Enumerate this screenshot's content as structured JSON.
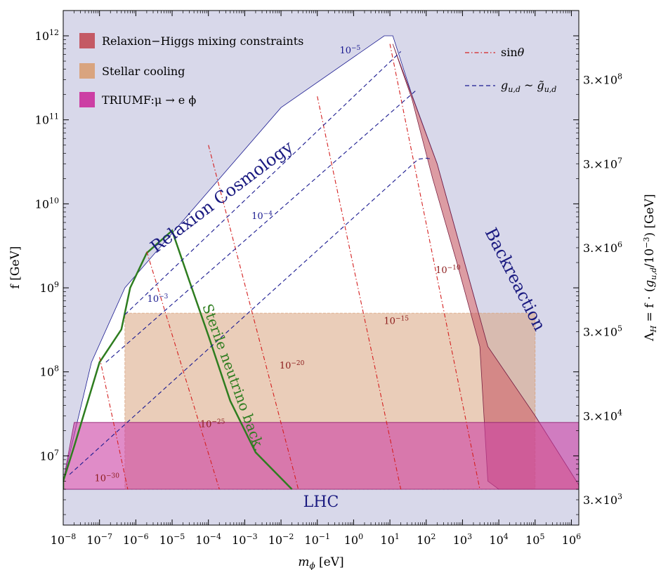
{
  "chart_data": {
    "type": "area",
    "xlabel_main": "m",
    "xlabel_sub": "ϕ",
    "xlabel_unit": "[eV]",
    "ylabel": "f [GeV]",
    "ylabel_right": "Λ_H = f · (g_{u,d}/10^{-3}) [GeV]",
    "ylabel_right_text": "ΛH = f · (gu,d/10−3) [GeV]",
    "x_scale": "log10",
    "y_scale": "log10",
    "xlim": [
      1e-08,
      1600000.0
    ],
    "ylim": [
      1500000.0,
      2000000000000.0
    ],
    "x_ticks": [
      {
        "exp": "-8",
        "label": "10−8"
      },
      {
        "exp": "-7",
        "label": "10−7"
      },
      {
        "exp": "-6",
        "label": "10−6"
      },
      {
        "exp": "-5",
        "label": "10−5"
      },
      {
        "exp": "-4",
        "label": "10−4"
      },
      {
        "exp": "-3",
        "label": "10−3"
      },
      {
        "exp": "-2",
        "label": "10−2"
      },
      {
        "exp": "-1",
        "label": "10−1"
      },
      {
        "exp": "0",
        "label": "100"
      },
      {
        "exp": "1",
        "label": "101"
      },
      {
        "exp": "2",
        "label": "102"
      },
      {
        "exp": "3",
        "label": "103"
      },
      {
        "exp": "4",
        "label": "104"
      },
      {
        "exp": "5",
        "label": "105"
      },
      {
        "exp": "6",
        "label": "106"
      }
    ],
    "y_ticks": [
      {
        "exp": "7",
        "label": "107"
      },
      {
        "exp": "8",
        "label": "108"
      },
      {
        "exp": "9",
        "label": "109"
      },
      {
        "exp": "10",
        "label": "1010"
      },
      {
        "exp": "11",
        "label": "1011"
      },
      {
        "exp": "12",
        "label": "1012"
      }
    ],
    "y_right_ticks": [
      {
        "f": 3000000.0,
        "mant": "3.",
        "exp": "3",
        "label": "3.×103"
      },
      {
        "f": 30000000.0,
        "mant": "3.",
        "exp": "4",
        "label": "3.×104"
      },
      {
        "f": 300000000.0,
        "mant": "3.",
        "exp": "5",
        "label": "3.×105"
      },
      {
        "f": 3000000000.0,
        "mant": "3.",
        "exp": "6",
        "label": "3.×106"
      },
      {
        "f": 30000000000.0,
        "mant": "3.",
        "exp": "7",
        "label": "3.×107"
      },
      {
        "f": 300000000000.0,
        "mant": "3.",
        "exp": "8",
        "label": "3.×108"
      }
    ],
    "colors": {
      "excluded_background": "#d8d8ea",
      "allowed": "#ffffff",
      "relaxion_higgs": "#c45a65",
      "stellar_cooling": "#d9a47f",
      "triumf": "#cc3fa4",
      "sterile_line": "#2e7d1f",
      "sin_theta_line": "#d42020",
      "coupling_line": "#1a1a90"
    },
    "legend": [
      {
        "label": "Relaxion−Higgs mixing constraints",
        "color": "#c45a65"
      },
      {
        "label": "Stellar cooling",
        "color": "#d9a47f"
      },
      {
        "label": "TRIUMF:μ → e ϕ",
        "color": "#cc3fa4"
      }
    ],
    "line_legend": [
      {
        "label": "sinθ",
        "style": "dash-dot",
        "color": "#d42020"
      },
      {
        "label": "g_{u,d} ~ g̃_{u,d}",
        "style": "dashed",
        "color": "#1a1a90"
      }
    ],
    "region_labels": {
      "relaxion_cosmology": "Relaxion Cosmology",
      "backreaction": "Backreaction",
      "sterile": "Sterile neutrino back.",
      "lhc": "LHC"
    },
    "allowed_region": [
      [
        1e-08,
        4000000.0
      ],
      [
        1e-08,
        5000000.0
      ],
      [
        6e-08,
        130000000.0
      ],
      [
        5e-07,
        1000000000.0
      ],
      [
        0.01,
        140000000000.0
      ],
      [
        7,
        1000000000000.0
      ],
      [
        12,
        1000000000000.0
      ],
      [
        40,
        200000000000.0
      ],
      [
        200,
        30000000000.0
      ],
      [
        5000.0,
        200000000.0
      ],
      [
        100000.0,
        30000000.0
      ],
      [
        1600000.0,
        4500000.0
      ],
      [
        1600000.0,
        4000000.0
      ]
    ],
    "relaxion_higgs_region": [
      [
        12,
        800000000000.0
      ],
      [
        200,
        30000000000.0
      ],
      [
        5000.0,
        200000000.0
      ],
      [
        100000.0,
        30000000.0
      ],
      [
        1600000.0,
        4500000.0
      ],
      [
        1600000.0,
        4000000.0
      ],
      [
        10000.0,
        4000000.0
      ],
      [
        5000.0,
        5000000.0
      ],
      [
        3000.0,
        200000000.0
      ],
      [
        700,
        2000000000.0
      ],
      [
        150,
        20000000000.0
      ],
      [
        40,
        180000000000.0
      ]
    ],
    "stellar_cooling_region": [
      [
        5e-07,
        500000000.0
      ],
      [
        100000.0,
        500000000.0
      ],
      [
        100000.0,
        4000000.0
      ],
      [
        5e-07,
        4000000.0
      ]
    ],
    "triumf_region": [
      [
        2e-08,
        25000000.0
      ],
      [
        1600000.0,
        25000000.0
      ],
      [
        1600000.0,
        4000000.0
      ],
      [
        1e-08,
        4000000.0
      ],
      [
        1e-08,
        5000000.0
      ]
    ],
    "sterile_boundary": [
      [
        1e-08,
        4000000.0
      ],
      [
        1e-08,
        5000000.0
      ],
      [
        2e-08,
        13000000.0
      ],
      [
        1e-07,
        130000000.0
      ],
      [
        4e-07,
        320000000.0
      ],
      [
        7e-07,
        1000000000.0
      ],
      [
        2e-06,
        2600000000.0
      ],
      [
        1e-05,
        4800000000.0
      ],
      [
        3e-05,
        1200000000.0
      ],
      [
        0.0001,
        270000000.0
      ],
      [
        0.0004,
        45000000.0
      ],
      [
        0.002,
        11000000.0
      ],
      [
        0.02,
        4000000.0
      ]
    ],
    "sin_theta_lines": [
      {
        "label": "10−30",
        "base": "10",
        "exp": "−30",
        "label_at": [
          1.6e-07,
          5000000.0
        ],
        "points": [
          [
            1e-07,
            150000000.0
          ],
          [
            6e-07,
            4000000.0
          ]
        ]
      },
      {
        "label": "10−25",
        "base": "10",
        "exp": "−25",
        "label_at": [
          0.00013,
          22000000.0
        ],
        "points": [
          [
            2e-06,
            2700000000.0
          ],
          [
            0.0002,
            4000000.0
          ]
        ]
      },
      {
        "label": "10−20",
        "base": "10",
        "exp": "−20",
        "label_at": [
          0.02,
          110000000.0
        ],
        "points": [
          [
            0.0001,
            50000000000.0
          ],
          [
            0.03,
            4000000.0
          ]
        ]
      },
      {
        "label": "10−15",
        "base": "10",
        "exp": "−15",
        "label_at": [
          15,
          370000000.0
        ],
        "points": [
          [
            0.1,
            190000000000.0
          ],
          [
            20,
            4000000.0
          ]
        ]
      },
      {
        "label": "10−10",
        "base": "10",
        "exp": "−10",
        "label_at": [
          400.0,
          1500000000.0
        ],
        "points": [
          [
            10,
            800000000000.0
          ],
          [
            3000.0,
            4000000.0
          ]
        ]
      }
    ],
    "coupling_lines": [
      {
        "label": "10−5",
        "base": "10",
        "exp": "−5",
        "label_at": [
          0.8,
          620000000000.0
        ],
        "points": [
          [
            5e-07,
            480000000.0
          ],
          [
            20,
            650000000000.0
          ]
        ]
      },
      {
        "label": "10−4",
        "base": "10",
        "exp": "−4",
        "label_at": [
          0.003,
          6600000000.0
        ],
        "points": [
          [
            1.5e-07,
            130000000.0
          ],
          [
            50,
            220000000000.0
          ]
        ]
      },
      {
        "label": "10−3",
        "base": "10",
        "exp": "−3",
        "label_at": [
          4e-06,
          680000000.0
        ],
        "points": [
          [
            1.5e-08,
            6000000.0
          ],
          [
            60,
            34000000000.0
          ],
          [
            100,
            35000000000.0
          ],
          [
            150,
            34000000000.0
          ]
        ]
      }
    ]
  }
}
